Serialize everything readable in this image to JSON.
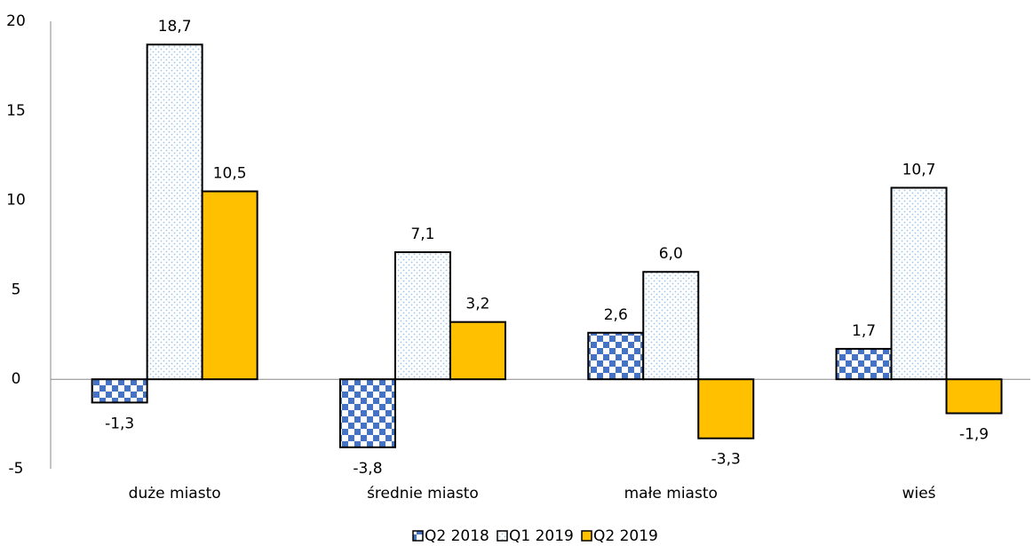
{
  "chart_data": {
    "type": "bar",
    "categories": [
      "duże miasto",
      "średnie miasto",
      "małe miasto",
      "wieś"
    ],
    "series": [
      {
        "name": "Q2 2018",
        "color": "#4472c4",
        "values": [
          -1.3,
          -3.8,
          2.6,
          1.7
        ],
        "value_labels": [
          "-1,3",
          "-3,8",
          "2,6",
          "1,7"
        ]
      },
      {
        "name": "Q1 2019",
        "color": "#9dc3e6",
        "values": [
          18.7,
          7.1,
          6.0,
          10.7
        ],
        "value_labels": [
          "18,7",
          "7,1",
          "6,0",
          "10,7"
        ]
      },
      {
        "name": "Q2 2019",
        "color": "#ffc000",
        "values": [
          10.5,
          3.2,
          -3.3,
          -1.9
        ],
        "value_labels": [
          "10,5",
          "3,2",
          "-3,3",
          "-1,9"
        ]
      }
    ],
    "ylim": [
      -5,
      20
    ],
    "yticks": [
      -5,
      0,
      5,
      10,
      15,
      20
    ],
    "grid": false,
    "legend": "bottom"
  }
}
